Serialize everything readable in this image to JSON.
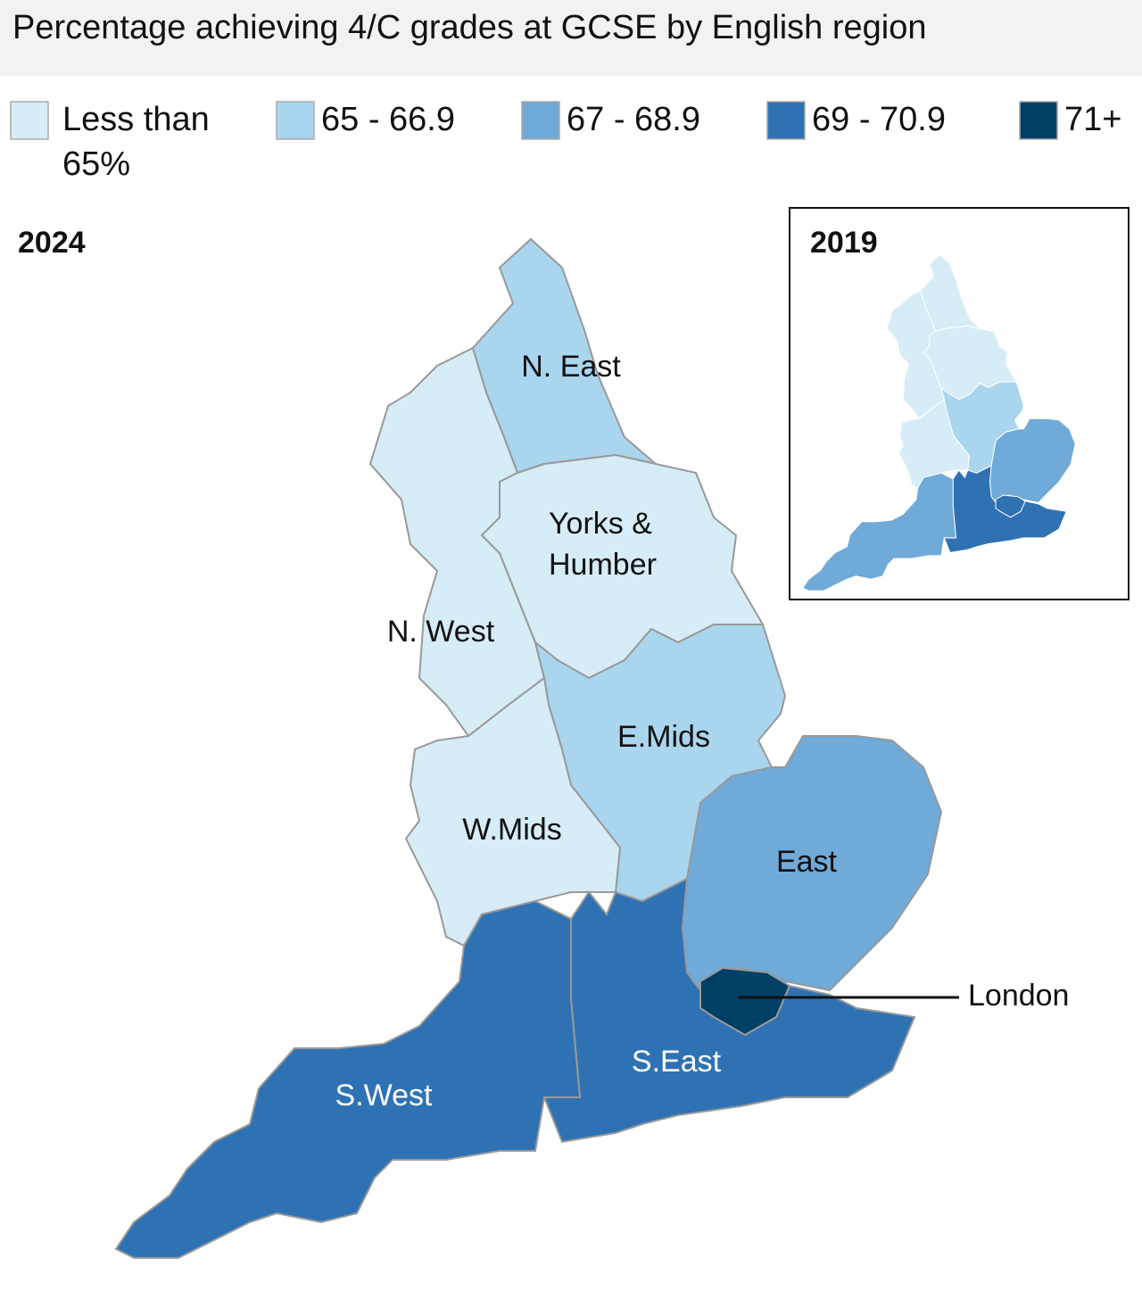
{
  "title": "Percentage achieving 4/C grades at GCSE by English region",
  "legend": [
    {
      "label": "Less than 65%",
      "color": "#d6ecf6"
    },
    {
      "label": "65 - 66.9",
      "color": "#a9d6ee"
    },
    {
      "label": "67 - 68.9",
      "color": "#6faad8"
    },
    {
      "label": "69 - 70.9",
      "color": "#2f72b4"
    },
    {
      "label": "71+",
      "color": "#003f66"
    }
  ],
  "main_map": {
    "year": "2024",
    "regions": [
      {
        "label": "N. East",
        "color": "#a9d6ee"
      },
      {
        "label": "N. West",
        "color": "#d6ecf6"
      },
      {
        "label": "Yorks & Humber",
        "color": "#d6ecf6"
      },
      {
        "label": "E.Mids",
        "color": "#a9d6ee"
      },
      {
        "label": "W.Mids",
        "color": "#d6ecf6"
      },
      {
        "label": "East",
        "color": "#6faad8"
      },
      {
        "label": "S.East",
        "color": "#2f72b4"
      },
      {
        "label": "S.West",
        "color": "#2f72b4"
      },
      {
        "label": "London",
        "color": "#003f66"
      }
    ]
  },
  "inset_map": {
    "year": "2019",
    "fills": [
      "#d6ecf6",
      "#d6ecf6",
      "#d6ecf6",
      "#a9d6ee",
      "#d6ecf6",
      "#6faad8",
      "#2f72b4",
      "#6faad8",
      "#2f72b4"
    ]
  }
}
